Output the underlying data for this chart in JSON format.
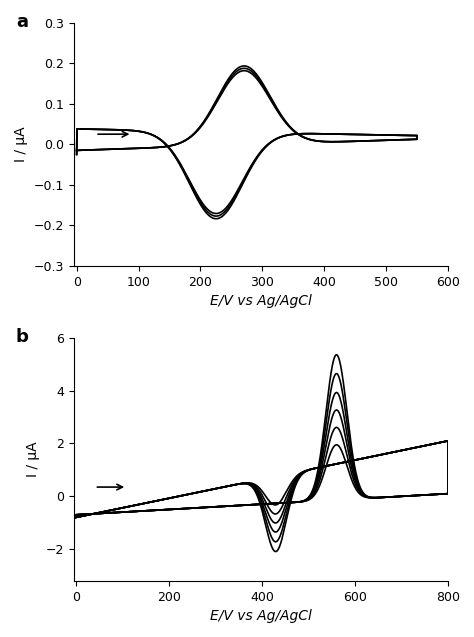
{
  "panel_a": {
    "xlabel": "E/V vs Ag/AgCl",
    "ylabel": "I / μA",
    "xlim": [
      -5,
      600
    ],
    "ylim": [
      -0.3,
      0.3
    ],
    "xticks": [
      0,
      100,
      200,
      300,
      400,
      500,
      600
    ],
    "yticks": [
      -0.3,
      -0.2,
      -0.1,
      0.0,
      0.1,
      0.2,
      0.3
    ],
    "label": "a",
    "n_curves": 3
  },
  "panel_b": {
    "xlabel": "E/V vs Ag/AgCl",
    "ylabel": "I / μA",
    "xlim": [
      -5,
      800
    ],
    "ylim": [
      -3.2,
      6.0
    ],
    "xticks": [
      0,
      200,
      400,
      600,
      800
    ],
    "yticks": [
      -2,
      0,
      2,
      4,
      6
    ],
    "label": "b",
    "n_curves": 6
  },
  "line_color": "#000000",
  "bg_color": "#ffffff",
  "linewidth": 1.2
}
